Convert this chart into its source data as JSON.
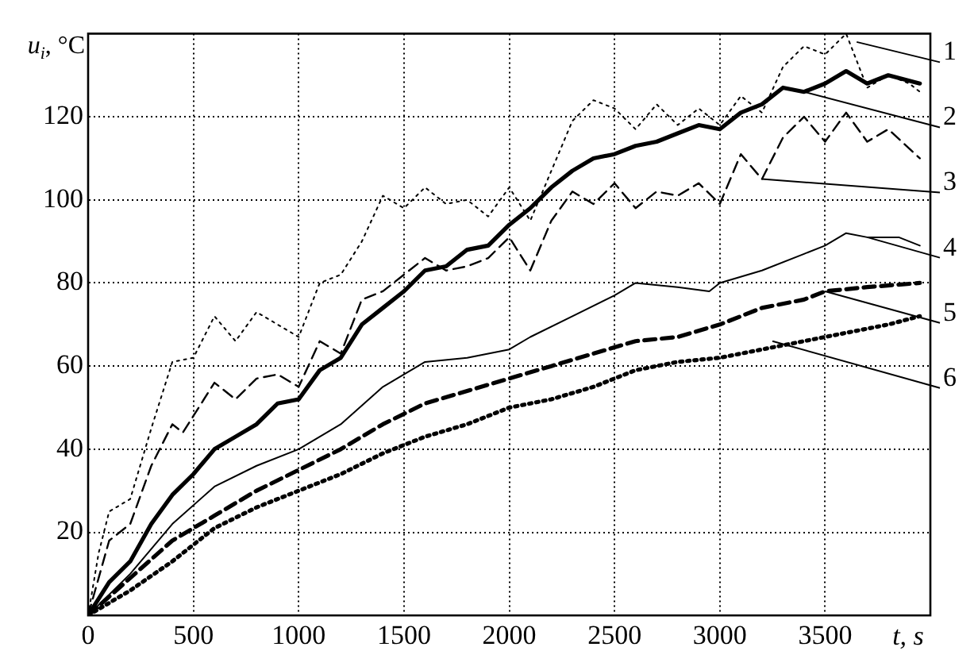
{
  "chart_data": {
    "type": "line",
    "xlabel": "t, s",
    "ylabel": "u$_{i}$, °C",
    "xlim": [
      0,
      4000
    ],
    "ylim": [
      0,
      140
    ],
    "xticks": [
      0,
      500,
      1000,
      1500,
      2000,
      2500,
      3000,
      3500,
      {
        "value": 4000,
        "label": null
      }
    ],
    "yticks": [
      {
        "value": 0,
        "label": null
      },
      20,
      40,
      60,
      80,
      100,
      120,
      {
        "value": 140,
        "label": null
      }
    ],
    "grid": true,
    "legend": false,
    "marker": "none",
    "series": [
      {
        "color": "#000000",
        "line_style": "dotted",
        "x": [
          0,
          50,
          100,
          200,
          300,
          400,
          500,
          600,
          700,
          800,
          900,
          1000,
          1100,
          1200,
          1300,
          1400,
          1500,
          1600,
          1700,
          1800,
          1900,
          2000,
          2100,
          2200,
          2300,
          2400,
          2500,
          2600,
          2700,
          2800,
          2900,
          3000,
          3100,
          3200,
          3300,
          3400,
          3500,
          3600,
          3700,
          3800,
          3900,
          3950
        ],
        "values": [
          0,
          15,
          25,
          28,
          45,
          61,
          62,
          72,
          66,
          73,
          70,
          67,
          80,
          82,
          90,
          101,
          98,
          103,
          99,
          100,
          96,
          103,
          95,
          107,
          119,
          124,
          122,
          117,
          123,
          118,
          122,
          118,
          125,
          121,
          132,
          137,
          135,
          140,
          127,
          130,
          128,
          126
        ]
      },
      {
        "color": "#000000",
        "line_style": "solid",
        "x": [
          0,
          100,
          200,
          300,
          400,
          500,
          600,
          700,
          800,
          900,
          1000,
          1100,
          1200,
          1300,
          1400,
          1500,
          1600,
          1700,
          1800,
          1900,
          2000,
          2100,
          2200,
          2300,
          2400,
          2500,
          2600,
          2700,
          2800,
          2900,
          3000,
          3100,
          3200,
          3300,
          3400,
          3500,
          3600,
          3700,
          3800,
          3950
        ],
        "values": [
          0,
          8,
          13,
          22,
          29,
          34,
          40,
          43,
          46,
          51,
          52,
          59,
          62,
          70,
          74,
          78,
          83,
          84,
          88,
          89,
          94,
          98,
          103,
          107,
          110,
          111,
          113,
          114,
          116,
          118,
          117,
          121,
          123,
          127,
          126,
          128,
          131,
          128,
          130,
          128
        ]
      },
      {
        "color": "#000000",
        "line_style": "dashed",
        "x": [
          0,
          100,
          200,
          300,
          400,
          450,
          500,
          600,
          700,
          800,
          900,
          1000,
          1100,
          1200,
          1300,
          1400,
          1500,
          1600,
          1700,
          1800,
          1900,
          2000,
          2100,
          2200,
          2300,
          2400,
          2500,
          2600,
          2700,
          2800,
          2900,
          3000,
          3100,
          3200,
          3300,
          3400,
          3500,
          3600,
          3700,
          3800,
          3950
        ],
        "values": [
          0,
          18,
          22,
          36,
          46,
          44,
          48,
          56,
          52,
          57,
          58,
          55,
          66,
          63,
          76,
          78,
          82,
          86,
          83,
          84,
          86,
          91,
          83,
          95,
          102,
          99,
          104,
          98,
          102,
          101,
          104,
          99,
          111,
          105,
          115,
          120,
          114,
          121,
          114,
          117,
          110
        ]
      },
      {
        "color": "#000000",
        "line_style": "solid",
        "x": [
          0,
          200,
          400,
          600,
          800,
          1000,
          1200,
          1400,
          1500,
          1600,
          1800,
          2000,
          2100,
          2300,
          2500,
          2600,
          2800,
          2950,
          3000,
          3200,
          3400,
          3500,
          3600,
          3700,
          3850,
          3950
        ],
        "values": [
          0,
          10,
          22,
          31,
          36,
          40,
          46,
          55,
          58,
          61,
          62,
          64,
          67,
          72,
          77,
          80,
          79,
          78,
          80,
          83,
          87,
          89,
          92,
          91,
          91,
          89
        ]
      },
      {
        "color": "#000000",
        "line_style": "dashed",
        "x": [
          0,
          200,
          400,
          600,
          800,
          1000,
          1200,
          1400,
          1600,
          1800,
          2000,
          2200,
          2400,
          2600,
          2800,
          3000,
          3200,
          3400,
          3500,
          3700,
          3950
        ],
        "values": [
          0,
          9,
          18,
          24,
          30,
          35,
          40,
          46,
          51,
          54,
          57,
          60,
          63,
          66,
          67,
          70,
          74,
          76,
          78,
          79,
          80
        ]
      },
      {
        "color": "#000000",
        "line_style": "dotted",
        "x": [
          0,
          200,
          400,
          600,
          800,
          1000,
          1200,
          1400,
          1600,
          1800,
          2000,
          2200,
          2400,
          2600,
          2800,
          3000,
          3200,
          3400,
          3600,
          3800,
          3950
        ],
        "values": [
          0,
          6,
          13,
          21,
          26,
          30,
          34,
          39,
          43,
          46,
          50,
          52,
          55,
          59,
          61,
          62,
          64,
          66,
          68,
          70,
          72
        ]
      }
    ],
    "annotations": [
      {
        "text": "1",
        "x": 3650,
        "y": 138
      },
      {
        "text": "2",
        "x": 3400,
        "y": 126
      },
      {
        "text": "3",
        "x": 3200,
        "y": 105
      },
      {
        "text": "4",
        "x": 3700,
        "y": 91
      },
      {
        "text": "5",
        "x": 3500,
        "y": 78
      },
      {
        "text": "6",
        "x": 3250,
        "y": 66
      }
    ]
  }
}
